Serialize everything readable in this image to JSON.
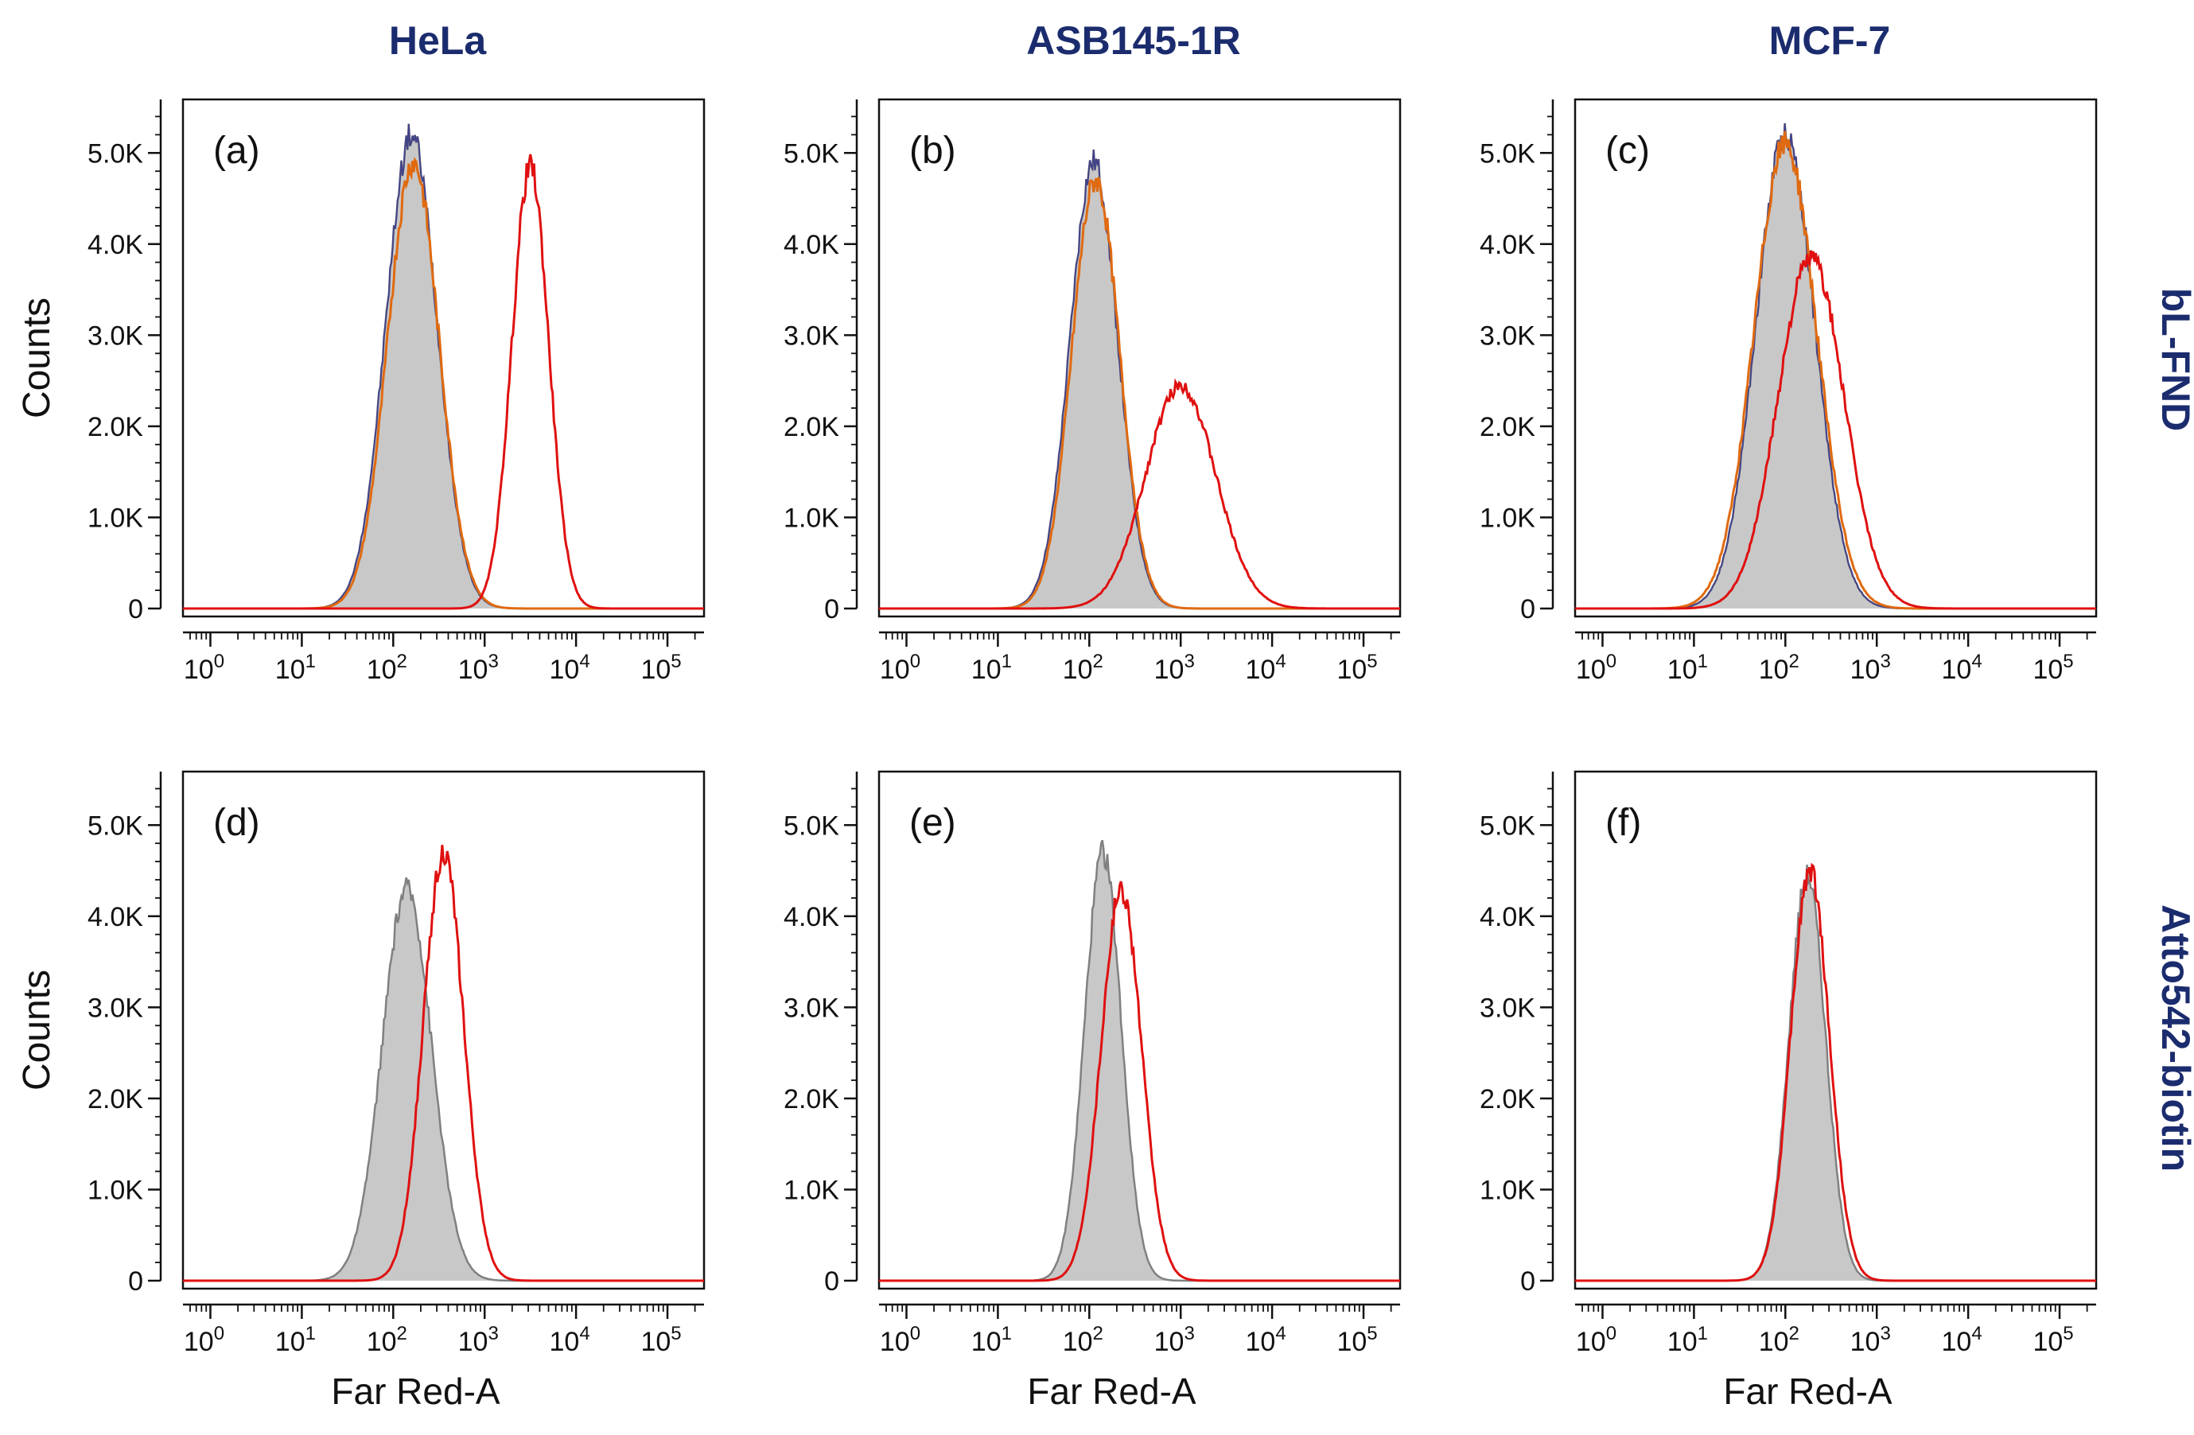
{
  "figure": {
    "column_titles": [
      "HeLa",
      "ASB145-1R",
      "MCF-7"
    ],
    "row_titles": [
      "bL-FND",
      "Atto542-biotin"
    ],
    "colors": {
      "title": "#1b2c6e",
      "control_fill": "#c8c8c8",
      "control_line": "#808080",
      "sample_line": "#e01010",
      "orange_line": "#e06a10",
      "blue_line": "#2a2a8c"
    }
  },
  "chart_data": [
    {
      "type": "histogram",
      "panel": "(a)",
      "column": "HeLa",
      "row": "bL-FND",
      "ylabel": "Counts",
      "xlabel": "",
      "x_scale": "log",
      "xlim_log10": [
        -0.3,
        5.4
      ],
      "ylim": [
        0,
        5500
      ],
      "yticks": [
        0,
        1000,
        2000,
        3000,
        4000,
        5000
      ],
      "ytick_labels": [
        "0",
        "1.0K",
        "2.0K",
        "3.0K",
        "4.0K",
        "5.0K"
      ],
      "xticks_log10": [
        0,
        1,
        2,
        3,
        4,
        5
      ],
      "series": [
        {
          "name": "control (filled grey)",
          "peak_log10": 2.2,
          "peak": 5200,
          "width_log10": 0.28,
          "style": "filled"
        },
        {
          "name": "orange overlay",
          "peak_log10": 2.22,
          "peak": 4900,
          "width_log10": 0.28,
          "style": "orange"
        },
        {
          "name": "sample (red)",
          "peak_log10": 3.5,
          "peak": 4850,
          "width_log10": 0.2,
          "style": "red"
        }
      ]
    },
    {
      "type": "histogram",
      "panel": "(b)",
      "column": "ASB145-1R",
      "row": "bL-FND",
      "ylabel": "",
      "xlabel": "",
      "x_scale": "log",
      "xlim_log10": [
        -0.3,
        5.4
      ],
      "ylim": [
        0,
        5500
      ],
      "yticks": [
        0,
        1000,
        2000,
        3000,
        4000,
        5000
      ],
      "ytick_labels": [
        "0",
        "1.0K",
        "2.0K",
        "3.0K",
        "4.0K",
        "5.0K"
      ],
      "xticks_log10": [
        0,
        1,
        2,
        3,
        4,
        5
      ],
      "series": [
        {
          "name": "control (filled grey)",
          "peak_log10": 2.05,
          "peak": 4900,
          "width_log10": 0.26,
          "style": "filled"
        },
        {
          "name": "orange overlay",
          "peak_log10": 2.07,
          "peak": 4700,
          "width_log10": 0.26,
          "style": "orange"
        },
        {
          "name": "sample (red)",
          "peak_log10": 3.0,
          "peak": 2450,
          "width_log10": 0.38,
          "style": "red"
        }
      ]
    },
    {
      "type": "histogram",
      "panel": "(c)",
      "column": "MCF-7",
      "row": "bL-FND",
      "ylabel": "",
      "xlabel": "",
      "x_scale": "log",
      "xlim_log10": [
        -0.3,
        5.4
      ],
      "ylim": [
        0,
        5500
      ],
      "yticks": [
        0,
        1000,
        2000,
        3000,
        4000,
        5000
      ],
      "ytick_labels": [
        "0",
        "1.0K",
        "2.0K",
        "3.0K",
        "4.0K",
        "5.0K"
      ],
      "xticks_log10": [
        0,
        1,
        2,
        3,
        4,
        5
      ],
      "series": [
        {
          "name": "control (filled grey)",
          "peak_log10": 2.0,
          "peak": 5200,
          "width_log10": 0.32,
          "style": "filled"
        },
        {
          "name": "orange overlay",
          "peak_log10": 2.0,
          "peak": 5100,
          "width_log10": 0.34,
          "style": "orange"
        },
        {
          "name": "sample (red)",
          "peak_log10": 2.28,
          "peak": 3850,
          "width_log10": 0.36,
          "style": "red"
        }
      ]
    },
    {
      "type": "histogram",
      "panel": "(d)",
      "column": "HeLa",
      "row": "Atto542-biotin",
      "ylabel": "Counts",
      "xlabel": "Far Red-A",
      "x_scale": "log",
      "xlim_log10": [
        -0.3,
        5.4
      ],
      "ylim": [
        0,
        5500
      ],
      "yticks": [
        0,
        1000,
        2000,
        3000,
        4000,
        5000
      ],
      "ytick_labels": [
        "0",
        "1.0K",
        "2.0K",
        "3.0K",
        "4.0K",
        "5.0K"
      ],
      "xticks_log10": [
        0,
        1,
        2,
        3,
        4,
        5
      ],
      "series": [
        {
          "name": "control (filled grey)",
          "peak_log10": 2.15,
          "peak": 4300,
          "width_log10": 0.27,
          "style": "filled"
        },
        {
          "name": "sample (red)",
          "peak_log10": 2.55,
          "peak": 4700,
          "width_log10": 0.22,
          "style": "red"
        }
      ]
    },
    {
      "type": "histogram",
      "panel": "(e)",
      "column": "ASB145-1R",
      "row": "Atto542-biotin",
      "ylabel": "",
      "xlabel": "Far Red-A",
      "x_scale": "log",
      "xlim_log10": [
        -0.3,
        5.4
      ],
      "ylim": [
        0,
        5500
      ],
      "yticks": [
        0,
        1000,
        2000,
        3000,
        4000,
        5000
      ],
      "ytick_labels": [
        "0",
        "1.0K",
        "2.0K",
        "3.0K",
        "4.0K",
        "5.0K"
      ],
      "xticks_log10": [
        0,
        1,
        2,
        3,
        4,
        5
      ],
      "series": [
        {
          "name": "control (filled grey)",
          "peak_log10": 2.15,
          "peak": 4700,
          "width_log10": 0.2,
          "style": "filled"
        },
        {
          "name": "sample (red)",
          "peak_log10": 2.35,
          "peak": 4300,
          "width_log10": 0.22,
          "style": "red"
        }
      ]
    },
    {
      "type": "histogram",
      "panel": "(f)",
      "column": "MCF-7",
      "row": "Atto542-biotin",
      "ylabel": "",
      "xlabel": "Far Red-A",
      "x_scale": "log",
      "xlim_log10": [
        -0.3,
        5.4
      ],
      "ylim": [
        0,
        5500
      ],
      "yticks": [
        0,
        1000,
        2000,
        3000,
        4000,
        5000
      ],
      "ytick_labels": [
        "0",
        "1.0K",
        "2.0K",
        "3.0K",
        "4.0K",
        "5.0K"
      ],
      "xticks_log10": [
        0,
        1,
        2,
        3,
        4,
        5
      ],
      "series": [
        {
          "name": "control (filled grey)",
          "peak_log10": 2.24,
          "peak": 4450,
          "width_log10": 0.2,
          "style": "filled"
        },
        {
          "name": "sample (red)",
          "peak_log10": 2.27,
          "peak": 4500,
          "width_log10": 0.21,
          "style": "red"
        }
      ]
    }
  ]
}
